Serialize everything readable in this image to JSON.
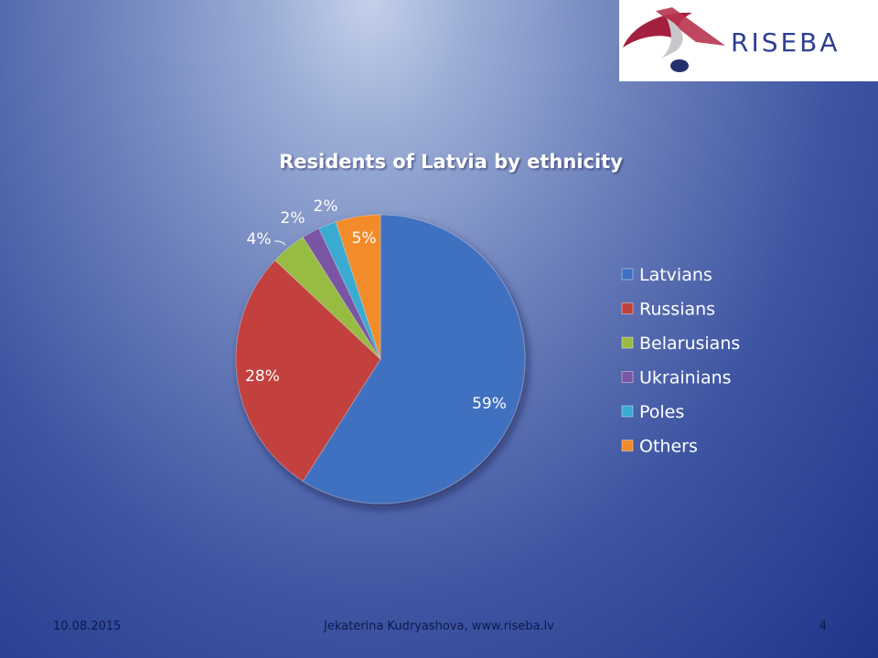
{
  "logo": {
    "text": "RISEBA"
  },
  "chart_data": {
    "type": "pie",
    "title": "Residents of Latvia by ethnicity",
    "categories": [
      "Latvians",
      "Russians",
      "Belarusians",
      "Ukrainians",
      "Poles",
      "Others"
    ],
    "values": [
      59,
      28,
      4,
      2,
      2,
      5
    ],
    "data_labels": [
      "59%",
      "28%",
      "4%",
      "2%",
      "2%",
      "5%"
    ],
    "colors": [
      "#3f6fc0",
      "#c2403c",
      "#98bb42",
      "#7a55a3",
      "#3aaad0",
      "#f28b2a"
    ],
    "legend_position": "right"
  },
  "footer": {
    "date": "10.08.2015",
    "author": "Jekaterina Kudryashova, www.riseba.lv",
    "page": "4"
  }
}
